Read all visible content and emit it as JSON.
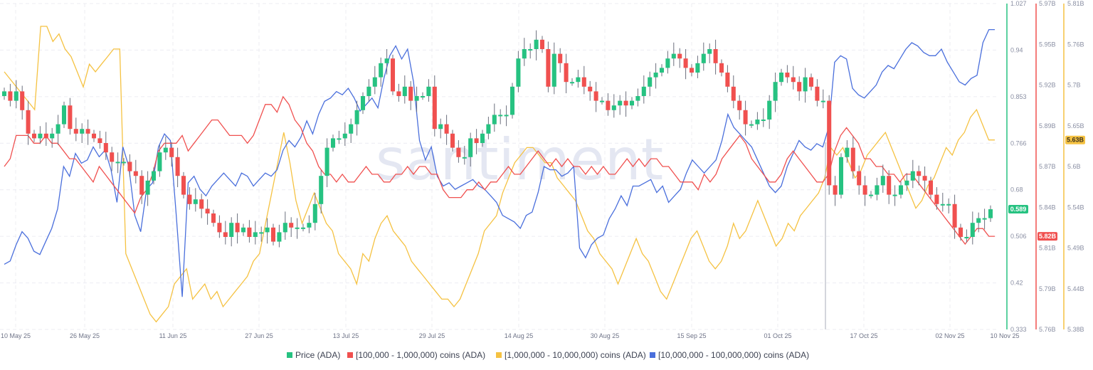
{
  "watermark": "santiment",
  "chart_data": {
    "type": "line",
    "title": "",
    "x_ticks": [
      "10 May 25",
      "26 May 25",
      "11 Jun 25",
      "27 Jun 25",
      "13 Jul 25",
      "29 Jul 25",
      "14 Aug 25",
      "30 Aug 25",
      "15 Sep 25",
      "01 Oct 25",
      "17 Oct 25",
      "02 Nov 25",
      "10 Nov 25"
    ],
    "x_range": [
      "10 May 25",
      "10 Nov 25"
    ],
    "grid": true,
    "legend_position": "bottom",
    "axes": {
      "price": {
        "ticks": [
          "1.027",
          "0.94",
          "0.853",
          "0.766",
          "0.68",
          "0.506",
          "0.42",
          "0.333"
        ],
        "range": [
          0.333,
          1.027
        ],
        "color": "#26c281",
        "current_badge": "0.589"
      },
      "holders_100k_1m": {
        "ticks": [
          "5.97B",
          "5.95B",
          "5.92B",
          "5.89B",
          "5.87B",
          "5.84B",
          "5.81B",
          "5.79B",
          "5.76B"
        ],
        "range": [
          5.76,
          5.97
        ],
        "unit": "B",
        "color": "#f0504f",
        "current_badge": "5.82B"
      },
      "holders_1m_10m": {
        "ticks": [
          "5.81B",
          "5.76B",
          "5.7B",
          "5.65B",
          "5.6B",
          "5.54B",
          "5.49B",
          "5.44B",
          "5.38B"
        ],
        "range": [
          5.38,
          5.81
        ],
        "unit": "B",
        "color": "#f5c242",
        "current_badge": "5.63B"
      }
    },
    "legend": [
      {
        "label": "Price (ADA)",
        "color": "#26c281"
      },
      {
        "label": "[100,000  - 1,000,000) coins (ADA)",
        "color": "#f0504f"
      },
      {
        "label": "[1,000,000 - 10,000,000) coins (ADA)",
        "color": "#f5c242"
      },
      {
        "label": "[10,000,000 - 100,000,000) coins (ADA)",
        "color": "#4a6fdc"
      }
    ],
    "price_close": [
      0.84,
      0.82,
      0.84,
      0.8,
      0.75,
      0.74,
      0.75,
      0.74,
      0.75,
      0.77,
      0.81,
      0.76,
      0.75,
      0.76,
      0.75,
      0.74,
      0.73,
      0.71,
      0.69,
      0.69,
      0.69,
      0.67,
      0.66,
      0.62,
      0.65,
      0.67,
      0.71,
      0.72,
      0.7,
      0.66,
      0.62,
      0.6,
      0.61,
      0.59,
      0.58,
      0.56,
      0.54,
      0.53,
      0.56,
      0.54,
      0.55,
      0.53,
      0.54,
      0.54,
      0.55,
      0.52,
      0.54,
      0.56,
      0.55,
      0.55,
      0.55,
      0.56,
      0.6,
      0.66,
      0.72,
      0.74,
      0.74,
      0.75,
      0.77,
      0.8,
      0.83,
      0.85,
      0.87,
      0.9,
      0.91,
      0.84,
      0.83,
      0.85,
      0.82,
      0.83,
      0.83,
      0.85,
      0.76,
      0.77,
      0.75,
      0.72,
      0.7,
      0.7,
      0.74,
      0.73,
      0.75,
      0.77,
      0.79,
      0.79,
      0.79,
      0.85,
      0.91,
      0.93,
      0.93,
      0.95,
      0.93,
      0.85,
      0.92,
      0.9,
      0.86,
      0.86,
      0.87,
      0.85,
      0.84,
      0.82,
      0.82,
      0.8,
      0.81,
      0.82,
      0.81,
      0.82,
      0.83,
      0.85,
      0.87,
      0.88,
      0.89,
      0.91,
      0.92,
      0.91,
      0.89,
      0.88,
      0.9,
      0.92,
      0.93,
      0.9,
      0.88,
      0.85,
      0.82,
      0.8,
      0.77,
      0.77,
      0.78,
      0.78,
      0.82,
      0.86,
      0.88,
      0.87,
      0.86,
      0.84,
      0.87,
      0.85,
      0.82,
      0.82,
      0.64,
      0.62,
      0.7,
      0.72,
      0.67,
      0.64,
      0.62,
      0.62,
      0.64,
      0.66,
      0.62,
      0.62,
      0.64,
      0.65,
      0.67,
      0.66,
      0.65,
      0.62,
      0.6,
      0.6,
      0.6,
      0.55,
      0.53,
      0.53,
      0.56,
      0.57,
      0.57,
      0.589
    ],
    "holders_100k_1m_billions": [
      5.865,
      5.87,
      5.885,
      5.885,
      5.885,
      5.88,
      5.88,
      5.885,
      5.88,
      5.88,
      5.875,
      5.87,
      5.87,
      5.865,
      5.86,
      5.855,
      5.865,
      5.86,
      5.855,
      5.85,
      5.845,
      5.84,
      5.835,
      5.845,
      5.85,
      5.86,
      5.875,
      5.88,
      5.88,
      5.88,
      5.885,
      5.875,
      5.88,
      5.885,
      5.89,
      5.895,
      5.895,
      5.89,
      5.885,
      5.885,
      5.885,
      5.88,
      5.885,
      5.895,
      5.905,
      5.905,
      5.9,
      5.91,
      5.905,
      5.895,
      5.89,
      5.88,
      5.875,
      5.865,
      5.86,
      5.86,
      5.855,
      5.86,
      5.855,
      5.855,
      5.86,
      5.865,
      5.86,
      5.86,
      5.855,
      5.855,
      5.86,
      5.86,
      5.865,
      5.86,
      5.865,
      5.865,
      5.86,
      5.86,
      5.85,
      5.845,
      5.845,
      5.845,
      5.85,
      5.85,
      5.855,
      5.85,
      5.855,
      5.855,
      5.86,
      5.865,
      5.86,
      5.86,
      5.865,
      5.87,
      5.875,
      5.87,
      5.865,
      5.87,
      5.865,
      5.87,
      5.865,
      5.865,
      5.86,
      5.865,
      5.86,
      5.865,
      5.86,
      5.86,
      5.865,
      5.87,
      5.865,
      5.87,
      5.865,
      5.87,
      5.87,
      5.865,
      5.865,
      5.86,
      5.855,
      5.855,
      5.855,
      5.85,
      5.86,
      5.855,
      5.86,
      5.87,
      5.875,
      5.88,
      5.885,
      5.88,
      5.87,
      5.865,
      5.86,
      5.855,
      5.855,
      5.86,
      5.87,
      5.875,
      5.87,
      5.865,
      5.86,
      5.855,
      5.855,
      5.86,
      5.875,
      5.885,
      5.89,
      5.885,
      5.88,
      5.87,
      5.87,
      5.865,
      5.865,
      5.86,
      5.86,
      5.855,
      5.86,
      5.86,
      5.855,
      5.85,
      5.845,
      5.84,
      5.835,
      5.83,
      5.825,
      5.82,
      5.815,
      5.82,
      5.825,
      5.825,
      5.82,
      5.82
    ],
    "holders_1m_10m_billions": [
      5.72,
      5.71,
      5.7,
      5.69,
      5.68,
      5.67,
      5.78,
      5.78,
      5.76,
      5.77,
      5.75,
      5.74,
      5.72,
      5.7,
      5.73,
      5.72,
      5.73,
      5.74,
      5.75,
      5.75,
      5.48,
      5.46,
      5.44,
      5.42,
      5.4,
      5.39,
      5.4,
      5.41,
      5.44,
      5.45,
      5.46,
      5.42,
      5.43,
      5.44,
      5.42,
      5.43,
      5.41,
      5.42,
      5.43,
      5.44,
      5.45,
      5.47,
      5.48,
      5.52,
      5.56,
      5.6,
      5.64,
      5.6,
      5.55,
      5.52,
      5.54,
      5.56,
      5.54,
      5.52,
      5.51,
      5.48,
      5.47,
      5.46,
      5.44,
      5.48,
      5.47,
      5.5,
      5.52,
      5.53,
      5.51,
      5.5,
      5.49,
      5.47,
      5.46,
      5.45,
      5.44,
      5.43,
      5.42,
      5.42,
      5.41,
      5.42,
      5.44,
      5.46,
      5.48,
      5.51,
      5.52,
      5.53,
      5.56,
      5.58,
      5.6,
      5.61,
      5.62,
      5.62,
      5.61,
      5.6,
      5.6,
      5.58,
      5.57,
      5.56,
      5.55,
      5.53,
      5.51,
      5.5,
      5.48,
      5.47,
      5.46,
      5.44,
      5.46,
      5.48,
      5.5,
      5.48,
      5.47,
      5.45,
      5.43,
      5.42,
      5.44,
      5.46,
      5.48,
      5.5,
      5.51,
      5.49,
      5.47,
      5.46,
      5.47,
      5.49,
      5.52,
      5.5,
      5.51,
      5.53,
      5.55,
      5.53,
      5.51,
      5.49,
      5.5,
      5.52,
      5.51,
      5.53,
      5.54,
      5.55,
      5.56,
      5.58,
      5.62,
      5.61,
      5.62,
      5.6,
      5.58,
      5.59,
      5.61,
      5.62,
      5.63,
      5.64,
      5.62,
      5.6,
      5.58,
      5.56,
      5.54,
      5.55,
      5.57,
      5.58,
      5.6,
      5.62,
      5.61,
      5.63,
      5.64,
      5.66,
      5.67,
      5.65,
      5.63,
      5.63
    ],
    "holders_10m_100m_relative": [
      0.2,
      0.21,
      0.26,
      0.3,
      0.28,
      0.24,
      0.23,
      0.27,
      0.31,
      0.37,
      0.5,
      0.47,
      0.54,
      0.51,
      0.52,
      0.56,
      0.53,
      0.55,
      0.49,
      0.39,
      0.56,
      0.5,
      0.35,
      0.3,
      0.43,
      0.45,
      0.56,
      0.6,
      0.58,
      0.35,
      0.1,
      0.45,
      0.47,
      0.43,
      0.41,
      0.44,
      0.46,
      0.48,
      0.46,
      0.44,
      0.48,
      0.47,
      0.44,
      0.46,
      0.48,
      0.47,
      0.49,
      0.55,
      0.58,
      0.56,
      0.59,
      0.64,
      0.6,
      0.66,
      0.7,
      0.71,
      0.73,
      0.72,
      0.74,
      0.71,
      0.67,
      0.69,
      0.71,
      0.68,
      0.77,
      0.84,
      0.87,
      0.83,
      0.86,
      0.76,
      0.58,
      0.52,
      0.56,
      0.47,
      0.44,
      0.45,
      0.43,
      0.44,
      0.45,
      0.46,
      0.44,
      0.43,
      0.41,
      0.39,
      0.35,
      0.34,
      0.33,
      0.31,
      0.35,
      0.36,
      0.42,
      0.5,
      0.49,
      0.49,
      0.47,
      0.48,
      0.5,
      0.25,
      0.22,
      0.26,
      0.28,
      0.29,
      0.34,
      0.37,
      0.41,
      0.38,
      0.44,
      0.44,
      0.45,
      0.46,
      0.42,
      0.44,
      0.39,
      0.41,
      0.43,
      0.48,
      0.52,
      0.5,
      0.48,
      0.5,
      0.52,
      0.58,
      0.66,
      0.62,
      0.6,
      0.58,
      0.56,
      0.52,
      0.48,
      0.44,
      0.42,
      0.44,
      0.5,
      0.54,
      0.58,
      0.56,
      0.55,
      0.57,
      0.56,
      0.62,
      0.82,
      0.84,
      0.83,
      0.74,
      0.72,
      0.71,
      0.73,
      0.75,
      0.79,
      0.81,
      0.8,
      0.83,
      0.86,
      0.88,
      0.87,
      0.85,
      0.84,
      0.84,
      0.86,
      0.82,
      0.79,
      0.76,
      0.75,
      0.77,
      0.78,
      0.88,
      0.92,
      0.92
    ]
  }
}
